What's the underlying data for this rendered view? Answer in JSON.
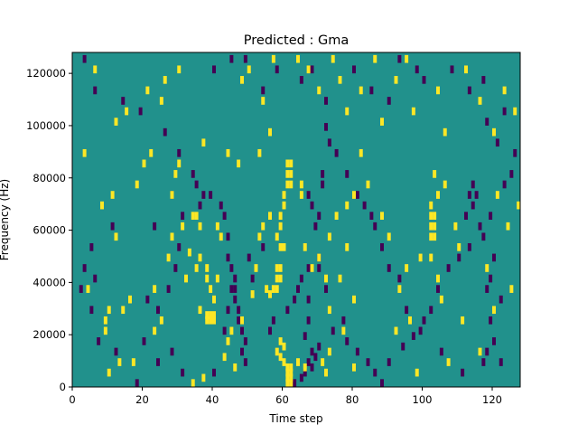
{
  "chart_data": {
    "type": "heatmap",
    "title": "Predicted : Gma",
    "xlabel": "Time step",
    "ylabel": "Frequency (Hz)",
    "xlim": [
      0,
      128
    ],
    "ylim": [
      0,
      128000
    ],
    "x_ticks": [
      0,
      20,
      40,
      60,
      80,
      100,
      120
    ],
    "y_ticks": [
      0,
      20000,
      40000,
      60000,
      80000,
      100000,
      120000
    ],
    "x_tick_labels": [
      "0",
      "20",
      "40",
      "60",
      "80",
      "100",
      "120"
    ],
    "y_tick_labels": [
      "0",
      "20000",
      "40000",
      "60000",
      "80000",
      "100000",
      "120000"
    ],
    "grid": false,
    "legend": "none",
    "colormap": "viridis",
    "levels": {
      "low": -1,
      "background": 0,
      "high": 1
    },
    "colors": {
      "low": "#440154",
      "background": "#21918c",
      "high": "#fde725"
    },
    "cell_height_hz": 3000,
    "cells_high": [
      [
        34,
        0
      ],
      [
        61,
        0
      ],
      [
        62,
        0
      ],
      [
        61,
        2000
      ],
      [
        62,
        2000
      ],
      [
        61,
        4000
      ],
      [
        62,
        4000
      ],
      [
        61,
        6000
      ],
      [
        62,
        6000
      ],
      [
        60,
        8000
      ],
      [
        64,
        8000
      ],
      [
        38,
        26000
      ],
      [
        39,
        26000
      ],
      [
        40,
        26000
      ],
      [
        38,
        24000
      ],
      [
        39,
        24000
      ],
      [
        40,
        24000
      ],
      [
        36,
        28000
      ],
      [
        59,
        16000
      ],
      [
        60,
        14000
      ],
      [
        58,
        12000
      ],
      [
        59,
        10000
      ],
      [
        66,
        6000
      ],
      [
        58,
        44000
      ],
      [
        59,
        44000
      ],
      [
        58,
        40000
      ],
      [
        59,
        40000
      ],
      [
        57,
        36000
      ],
      [
        58,
        36000
      ],
      [
        56,
        34000
      ],
      [
        59,
        52000
      ],
      [
        60,
        52000
      ],
      [
        58,
        56000
      ],
      [
        59,
        60000
      ],
      [
        59,
        64000
      ],
      [
        60,
        68000
      ],
      [
        61,
        76000
      ],
      [
        62,
        76000
      ],
      [
        61,
        80000
      ],
      [
        62,
        80000
      ],
      [
        61,
        84000
      ],
      [
        62,
        84000
      ],
      [
        60,
        72000
      ],
      [
        65,
        72000
      ],
      [
        65,
        76000
      ],
      [
        38,
        40000
      ],
      [
        38,
        44000
      ],
      [
        39,
        36000
      ],
      [
        40,
        32000
      ],
      [
        41,
        40000
      ],
      [
        32,
        40000
      ],
      [
        35,
        44000
      ],
      [
        36,
        48000
      ],
      [
        33,
        50000
      ],
      [
        35,
        64000
      ],
      [
        36,
        60000
      ],
      [
        41,
        60000
      ],
      [
        42,
        56000
      ],
      [
        102,
        64000
      ],
      [
        103,
        64000
      ],
      [
        102,
        60000
      ],
      [
        103,
        60000
      ],
      [
        102,
        56000
      ],
      [
        103,
        56000
      ],
      [
        102,
        68000
      ],
      [
        104,
        72000
      ],
      [
        106,
        76000
      ],
      [
        103,
        80000
      ],
      [
        104,
        40000
      ],
      [
        105,
        32000
      ],
      [
        102,
        48000
      ],
      [
        109,
        60000
      ],
      [
        110,
        52000
      ],
      [
        9,
        20000
      ],
      [
        9,
        24000
      ],
      [
        10,
        28000
      ],
      [
        16,
        32000
      ],
      [
        23,
        20000
      ],
      [
        8,
        68000
      ],
      [
        11,
        72000
      ],
      [
        14,
        28000
      ],
      [
        17,
        8000
      ],
      [
        25,
        24000
      ],
      [
        27,
        48000
      ],
      [
        28,
        72000
      ],
      [
        29,
        80000
      ],
      [
        30,
        84000
      ],
      [
        23,
        36000
      ],
      [
        28,
        56000
      ],
      [
        31,
        60000
      ],
      [
        34,
        64000
      ],
      [
        37,
        92000
      ],
      [
        44,
        88000
      ],
      [
        47,
        84000
      ],
      [
        53,
        88000
      ],
      [
        56,
        96000
      ],
      [
        48,
        116000
      ],
      [
        50,
        120000
      ],
      [
        54,
        108000
      ],
      [
        57,
        124000
      ],
      [
        64,
        124000
      ],
      [
        67,
        120000
      ],
      [
        70,
        112000
      ],
      [
        74,
        124000
      ],
      [
        76,
        116000
      ],
      [
        78,
        104000
      ],
      [
        82,
        112000
      ],
      [
        86,
        124000
      ],
      [
        88,
        100000
      ],
      [
        92,
        116000
      ],
      [
        95,
        124000
      ],
      [
        97,
        104000
      ],
      [
        104,
        112000
      ],
      [
        106,
        96000
      ],
      [
        112,
        120000
      ],
      [
        116,
        108000
      ],
      [
        120,
        96000
      ],
      [
        123,
        112000
      ],
      [
        126,
        104000
      ],
      [
        120,
        28000
      ],
      [
        118,
        44000
      ],
      [
        125,
        36000
      ],
      [
        124,
        60000
      ],
      [
        121,
        72000
      ],
      [
        127,
        68000
      ],
      [
        111,
        24000
      ],
      [
        107,
        8000
      ],
      [
        116,
        12000
      ],
      [
        98,
        4000
      ],
      [
        95,
        44000
      ],
      [
        99,
        48000
      ],
      [
        96,
        24000
      ],
      [
        92,
        20000
      ],
      [
        93,
        36000
      ],
      [
        90,
        56000
      ],
      [
        88,
        64000
      ],
      [
        84,
        76000
      ],
      [
        82,
        88000
      ],
      [
        78,
        52000
      ],
      [
        76,
        40000
      ],
      [
        80,
        32000
      ],
      [
        73,
        28000
      ],
      [
        72,
        40000
      ],
      [
        71,
        8000
      ],
      [
        73,
        12000
      ],
      [
        77,
        20000
      ],
      [
        80,
        6000
      ],
      [
        72,
        4000
      ],
      [
        44,
        16000
      ],
      [
        45,
        20000
      ],
      [
        48,
        24000
      ],
      [
        51,
        34000
      ],
      [
        52,
        44000
      ],
      [
        55,
        36000
      ],
      [
        53,
        56000
      ],
      [
        54,
        60000
      ],
      [
        56,
        64000
      ],
      [
        66,
        52000
      ],
      [
        68,
        44000
      ],
      [
        70,
        48000
      ],
      [
        73,
        56000
      ],
      [
        75,
        64000
      ],
      [
        78,
        68000
      ],
      [
        80,
        72000
      ],
      [
        18,
        76000
      ],
      [
        20,
        84000
      ],
      [
        22,
        88000
      ],
      [
        12,
        100000
      ],
      [
        15,
        104000
      ],
      [
        21,
        112000
      ],
      [
        25,
        108000
      ],
      [
        26,
        116000
      ],
      [
        30,
        120000
      ],
      [
        6,
        120000
      ],
      [
        3,
        88000
      ],
      [
        12,
        56000
      ],
      [
        4,
        36000
      ],
      [
        10,
        4000
      ],
      [
        13,
        8000
      ],
      [
        37,
        2000
      ],
      [
        43,
        10000
      ],
      [
        46,
        6000
      ]
    ],
    "cells_low": [
      [
        18,
        0
      ],
      [
        63,
        0
      ],
      [
        65,
        2000
      ],
      [
        66,
        4000
      ],
      [
        67,
        8000
      ],
      [
        68,
        6000
      ],
      [
        69,
        10000
      ],
      [
        68,
        12000
      ],
      [
        70,
        14000
      ],
      [
        66,
        18000
      ],
      [
        67,
        24000
      ],
      [
        67,
        32000
      ],
      [
        70,
        44000
      ],
      [
        70,
        48000
      ],
      [
        69,
        60000
      ],
      [
        70,
        64000
      ],
      [
        68,
        68000
      ],
      [
        67,
        72000
      ],
      [
        71,
        76000
      ],
      [
        71,
        80000
      ],
      [
        44,
        48000
      ],
      [
        45,
        44000
      ],
      [
        46,
        40000
      ],
      [
        45,
        36000
      ],
      [
        46,
        32000
      ],
      [
        47,
        28000
      ],
      [
        47,
        24000
      ],
      [
        48,
        20000
      ],
      [
        49,
        16000
      ],
      [
        48,
        12000
      ],
      [
        49,
        8000
      ],
      [
        44,
        56000
      ],
      [
        43,
        64000
      ],
      [
        42,
        68000
      ],
      [
        39,
        72000
      ],
      [
        34,
        80000
      ],
      [
        30,
        88000
      ],
      [
        26,
        96000
      ],
      [
        19,
        104000
      ],
      [
        14,
        108000
      ],
      [
        6,
        112000
      ],
      [
        3,
        124000
      ],
      [
        1,
        128000
      ],
      [
        40,
        120000
      ],
      [
        45,
        124000
      ],
      [
        49,
        124000
      ],
      [
        54,
        112000
      ],
      [
        58,
        120000
      ],
      [
        65,
        116000
      ],
      [
        68,
        120000
      ],
      [
        72,
        108000
      ],
      [
        80,
        120000
      ],
      [
        85,
        112000
      ],
      [
        90,
        108000
      ],
      [
        93,
        124000
      ],
      [
        100,
        116000
      ],
      [
        108,
        120000
      ],
      [
        113,
        112000
      ],
      [
        118,
        100000
      ],
      [
        121,
        92000
      ],
      [
        113,
        72000
      ],
      [
        114,
        68000
      ],
      [
        114,
        76000
      ],
      [
        115,
        72000
      ],
      [
        112,
        64000
      ],
      [
        116,
        60000
      ],
      [
        117,
        56000
      ],
      [
        120,
        48000
      ],
      [
        119,
        40000
      ],
      [
        118,
        36000
      ],
      [
        122,
        32000
      ],
      [
        119,
        24000
      ],
      [
        120,
        16000
      ],
      [
        118,
        12000
      ],
      [
        117,
        8000
      ],
      [
        122,
        8000
      ],
      [
        111,
        4000
      ],
      [
        105,
        12000
      ],
      [
        99,
        20000
      ],
      [
        95,
        28000
      ],
      [
        93,
        40000
      ],
      [
        90,
        44000
      ],
      [
        88,
        52000
      ],
      [
        86,
        60000
      ],
      [
        85,
        64000
      ],
      [
        83,
        68000
      ],
      [
        81,
        72000
      ],
      [
        78,
        80000
      ],
      [
        75,
        88000
      ],
      [
        73,
        92000
      ],
      [
        72,
        98000
      ],
      [
        11,
        60000
      ],
      [
        5,
        52000
      ],
      [
        3,
        44000
      ],
      [
        6,
        40000
      ],
      [
        2,
        36000
      ],
      [
        5,
        28000
      ],
      [
        7,
        16000
      ],
      [
        12,
        12000
      ],
      [
        20,
        16000
      ],
      [
        24,
        28000
      ],
      [
        21,
        32000
      ],
      [
        27,
        36000
      ],
      [
        29,
        44000
      ],
      [
        30,
        52000
      ],
      [
        31,
        64000
      ],
      [
        36,
        68000
      ],
      [
        37,
        72000
      ],
      [
        35,
        76000
      ],
      [
        23,
        60000
      ],
      [
        28,
        72000
      ],
      [
        24,
        8000
      ],
      [
        28,
        12000
      ],
      [
        31,
        4000
      ],
      [
        40,
        4000
      ],
      [
        43,
        20000
      ],
      [
        44,
        28000
      ],
      [
        46,
        36000
      ],
      [
        51,
        40000
      ],
      [
        50,
        48000
      ],
      [
        54,
        52000
      ],
      [
        57,
        24000
      ],
      [
        56,
        20000
      ],
      [
        61,
        28000
      ],
      [
        63,
        32000
      ],
      [
        64,
        36000
      ],
      [
        65,
        40000
      ],
      [
        67,
        44000
      ],
      [
        72,
        36000
      ],
      [
        74,
        20000
      ],
      [
        77,
        24000
      ],
      [
        78,
        16000
      ],
      [
        81,
        12000
      ],
      [
        84,
        8000
      ],
      [
        86,
        4000
      ],
      [
        88,
        0
      ],
      [
        90,
        8000
      ],
      [
        94,
        14000
      ],
      [
        97,
        18000
      ],
      [
        100,
        24000
      ],
      [
        102,
        28000
      ],
      [
        104,
        36000
      ],
      [
        107,
        44000
      ],
      [
        110,
        48000
      ],
      [
        113,
        52000
      ],
      [
        119,
        64000
      ],
      [
        123,
        76000
      ],
      [
        125,
        80000
      ],
      [
        126,
        88000
      ],
      [
        123,
        104000
      ],
      [
        117,
        116000
      ],
      [
        111,
        128000
      ],
      [
        103,
        128000
      ],
      [
        98,
        120000
      ]
    ]
  }
}
